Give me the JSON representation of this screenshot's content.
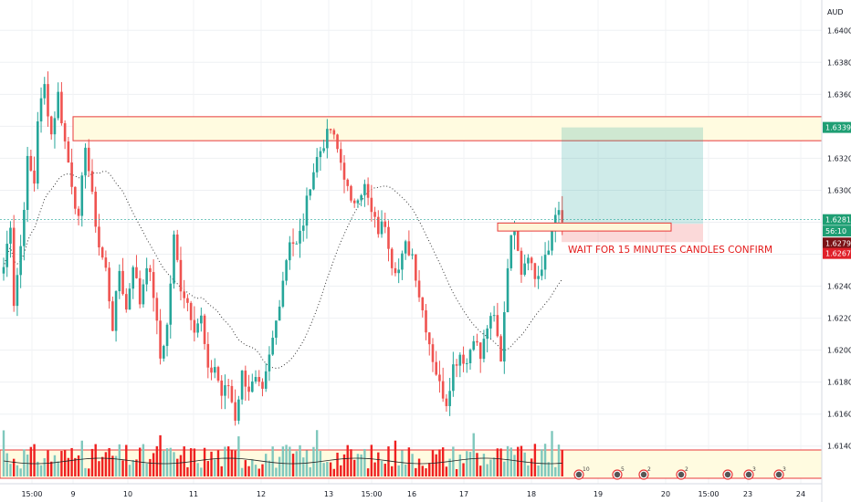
{
  "currency": "AUD",
  "chart_data": {
    "type": "candlestick",
    "title": "",
    "ylim": [
      1.6125,
      1.6415
    ],
    "y_ticks": [
      "1.64000",
      "1.63800",
      "1.63600",
      "1.63400",
      "1.63200",
      "1.63000",
      "1.62800",
      "1.62600",
      "1.62400",
      "1.62200",
      "1.62000",
      "1.61800",
      "1.61600",
      "1.61400"
    ],
    "x_ticks": [
      "15:00",
      "9",
      "10",
      "11",
      "12",
      "13",
      "15:00",
      "16",
      "17",
      "18",
      "19",
      "20",
      "15:00",
      "23",
      "24"
    ],
    "grid": true,
    "price_tags": [
      {
        "label": "1.63393",
        "value": 1.63393,
        "color": "#1e9e73"
      },
      {
        "label": "1.62816",
        "value": 1.62816,
        "color": "#1e9e73"
      },
      {
        "label": "56:10",
        "value": 1.62745,
        "color": "#1e9e73"
      },
      {
        "label": "1.62790",
        "value": 1.6267,
        "color": "#7a1216"
      },
      {
        "label": "1.62676",
        "value": 1.62605,
        "color": "#e0202a"
      }
    ],
    "zones": [
      {
        "name": "supply-zone",
        "y_low": 1.6331,
        "y_high": 1.6346
      },
      {
        "name": "volume-zone",
        "y_low": 1.6125,
        "y_high": 1.6141
      }
    ],
    "position": {
      "entry": 1.6279,
      "target": 1.63393,
      "stop": 1.62676
    },
    "order_box": {
      "y_low": 1.62745,
      "y_high": 1.62795
    },
    "annotation": "WAIT FOR 15 MINUTES CANDLES CONFIRM",
    "event_markers": [
      {
        "label": "10"
      },
      {
        "label": "5"
      },
      {
        "label": "2"
      },
      {
        "label": "2"
      },
      {
        "label": ""
      },
      {
        "label": "3"
      },
      {
        "label": "3"
      }
    ],
    "anchors": [
      [
        0,
        1.6252
      ],
      [
        2,
        1.628
      ],
      [
        3,
        1.623
      ],
      [
        5,
        1.6265
      ],
      [
        7,
        1.6318
      ],
      [
        9,
        1.6305
      ],
      [
        10,
        1.6345
      ],
      [
        12,
        1.6365
      ],
      [
        14,
        1.6335
      ],
      [
        16,
        1.636
      ],
      [
        18,
        1.633
      ],
      [
        20,
        1.6305
      ],
      [
        22,
        1.628
      ],
      [
        24,
        1.633
      ],
      [
        26,
        1.6295
      ],
      [
        28,
        1.6265
      ],
      [
        30,
        1.625
      ],
      [
        32,
        1.6215
      ],
      [
        34,
        1.625
      ],
      [
        36,
        1.6225
      ],
      [
        38,
        1.6255
      ],
      [
        40,
        1.623
      ],
      [
        42,
        1.6255
      ],
      [
        44,
        1.6235
      ],
      [
        46,
        1.6195
      ],
      [
        48,
        1.6215
      ],
      [
        50,
        1.627
      ],
      [
        52,
        1.624
      ],
      [
        54,
        1.623
      ],
      [
        56,
        1.6215
      ],
      [
        58,
        1.622
      ],
      [
        60,
        1.6185
      ],
      [
        62,
        1.619
      ],
      [
        64,
        1.6172
      ],
      [
        66,
        1.6178
      ],
      [
        68,
        1.6158
      ],
      [
        70,
        1.6185
      ],
      [
        72,
        1.6176
      ],
      [
        74,
        1.618
      ],
      [
        76,
        1.6172
      ],
      [
        78,
        1.6195
      ],
      [
        80,
        1.6218
      ],
      [
        82,
        1.6245
      ],
      [
        84,
        1.627
      ],
      [
        86,
        1.6265
      ],
      [
        88,
        1.628
      ],
      [
        90,
        1.6305
      ],
      [
        92,
        1.632
      ],
      [
        94,
        1.633
      ],
      [
        96,
        1.6338
      ],
      [
        98,
        1.6325
      ],
      [
        100,
        1.631
      ],
      [
        102,
        1.629
      ],
      [
        104,
        1.6298
      ],
      [
        106,
        1.6302
      ],
      [
        108,
        1.6285
      ],
      [
        110,
        1.6275
      ],
      [
        112,
        1.628
      ],
      [
        114,
        1.6255
      ],
      [
        116,
        1.625
      ],
      [
        118,
        1.6265
      ],
      [
        120,
        1.626
      ],
      [
        122,
        1.6235
      ],
      [
        124,
        1.6215
      ],
      [
        126,
        1.6195
      ],
      [
        128,
        1.6178
      ],
      [
        130,
        1.6168
      ],
      [
        132,
        1.619
      ],
      [
        134,
        1.6198
      ],
      [
        136,
        1.6192
      ],
      [
        138,
        1.621
      ],
      [
        140,
        1.6195
      ],
      [
        142,
        1.6215
      ],
      [
        144,
        1.622
      ],
      [
        146,
        1.6195
      ],
      [
        148,
        1.6255
      ],
      [
        150,
        1.6282
      ],
      [
        152,
        1.625
      ],
      [
        154,
        1.6262
      ],
      [
        156,
        1.6245
      ],
      [
        158,
        1.625
      ],
      [
        160,
        1.6262
      ],
      [
        162,
        1.6288
      ],
      [
        164,
        1.628
      ]
    ]
  }
}
